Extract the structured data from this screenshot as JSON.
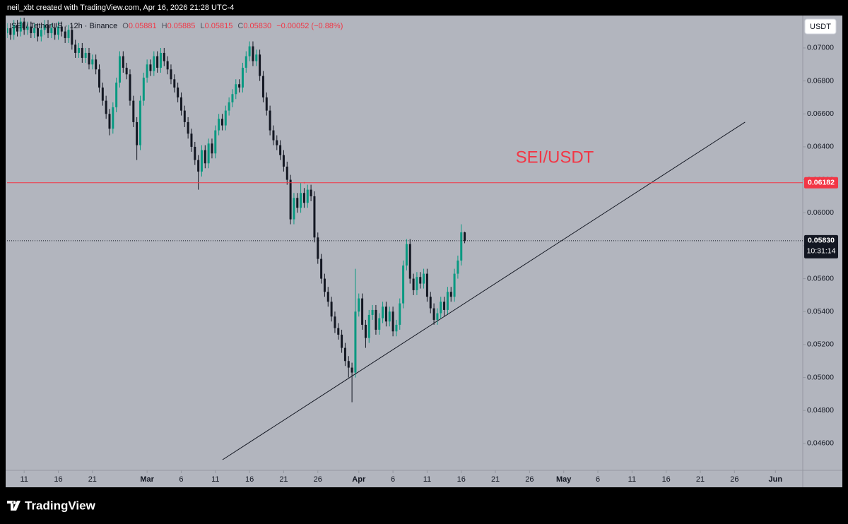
{
  "header": {
    "caption": "neil_xbt created with TradingView.com, Apr 16, 2026 21:28 UTC-4"
  },
  "footer": {
    "brand": "TradingView"
  },
  "chart_data": {
    "type": "candlestick",
    "legend": {
      "symbol": "SEI / TetherUS · 12h · Binance",
      "items": [
        {
          "key": "O",
          "value": "0.05881"
        },
        {
          "key": "H",
          "value": "0.05885"
        },
        {
          "key": "L",
          "value": "0.05815"
        },
        {
          "key": "C",
          "value": "0.05830"
        }
      ],
      "change": "−0.00052 (−0.88%)"
    },
    "currency": "USDT",
    "annotation": "SEI/USDT",
    "up_color": "#089981",
    "down_color": "#131722",
    "background": "#b2b5be",
    "grid": false,
    "open": [
      0.0709,
      0.0712,
      0.0708,
      0.0714,
      0.071,
      0.0716,
      0.0711,
      0.0713,
      0.0709,
      0.0712,
      0.0707,
      0.0711,
      0.0714,
      0.0709,
      0.0712,
      0.0708,
      0.0713,
      0.071,
      0.0706,
      0.0711,
      0.0702,
      0.0697,
      0.07,
      0.0694,
      0.0697,
      0.069,
      0.0693,
      0.0687,
      0.0676,
      0.0668,
      0.066,
      0.0651,
      0.0664,
      0.0679,
      0.0695,
      0.0688,
      0.0684,
      0.0668,
      0.0655,
      0.0641,
      0.0668,
      0.0682,
      0.069,
      0.0686,
      0.0695,
      0.0688,
      0.0697,
      0.0692,
      0.0687,
      0.0681,
      0.0676,
      0.067,
      0.0662,
      0.0655,
      0.0648,
      0.064,
      0.0632,
      0.0625,
      0.0638,
      0.063,
      0.0642,
      0.0636,
      0.065,
      0.0657,
      0.0653,
      0.0662,
      0.0667,
      0.0672,
      0.0678,
      0.0676,
      0.0688,
      0.0695,
      0.0701,
      0.0692,
      0.0696,
      0.0683,
      0.067,
      0.0662,
      0.065,
      0.0644,
      0.0641,
      0.0635,
      0.0628,
      0.062,
      0.0596,
      0.0609,
      0.0603,
      0.0612,
      0.0606,
      0.0614,
      0.061,
      0.0585,
      0.0572,
      0.056,
      0.0552,
      0.0546,
      0.0537,
      0.053,
      0.0526,
      0.0518,
      0.051,
      0.0506,
      0.0503,
      0.054,
      0.0548,
      0.0532,
      0.0524,
      0.0538,
      0.0541,
      0.0529,
      0.0536,
      0.0543,
      0.0534,
      0.054,
      0.0528,
      0.0532,
      0.0545,
      0.0568,
      0.0581,
      0.056,
      0.0553,
      0.0561,
      0.0557,
      0.0563,
      0.0549,
      0.0542,
      0.0535,
      0.0539,
      0.0546,
      0.0541,
      0.0552,
      0.0549,
      0.0563,
      0.0571,
      0.05881
    ],
    "high": [
      0.0715,
      0.0715,
      0.0717,
      0.0717,
      0.0719,
      0.0719,
      0.0716,
      0.0716,
      0.0715,
      0.0715,
      0.0714,
      0.0717,
      0.0717,
      0.0715,
      0.0715,
      0.0716,
      0.0716,
      0.0713,
      0.0714,
      0.0714,
      0.0705,
      0.0703,
      0.0703,
      0.07,
      0.07,
      0.0696,
      0.0696,
      0.069,
      0.0679,
      0.0671,
      0.0663,
      0.0667,
      0.0682,
      0.0698,
      0.0698,
      0.0691,
      0.0687,
      0.0671,
      0.0658,
      0.0671,
      0.0685,
      0.0693,
      0.0693,
      0.0698,
      0.0698,
      0.07,
      0.07,
      0.0695,
      0.069,
      0.0684,
      0.0679,
      0.0673,
      0.0665,
      0.0658,
      0.0651,
      0.0643,
      0.0635,
      0.0641,
      0.0641,
      0.0645,
      0.0645,
      0.0653,
      0.066,
      0.066,
      0.0665,
      0.067,
      0.0675,
      0.0681,
      0.0681,
      0.0691,
      0.0698,
      0.0704,
      0.0704,
      0.0699,
      0.0699,
      0.0686,
      0.0673,
      0.0665,
      0.0653,
      0.0647,
      0.0644,
      0.0638,
      0.0631,
      0.0623,
      0.0612,
      0.0612,
      0.0618,
      0.0615,
      0.0617,
      0.0617,
      0.0613,
      0.0588,
      0.0575,
      0.0563,
      0.0555,
      0.0549,
      0.054,
      0.0533,
      0.0529,
      0.0521,
      0.0513,
      0.0509,
      0.0566,
      0.0551,
      0.0551,
      0.0535,
      0.0541,
      0.0544,
      0.0544,
      0.0539,
      0.0546,
      0.0546,
      0.0543,
      0.0543,
      0.0535,
      0.0548,
      0.0571,
      0.0584,
      0.0584,
      0.0563,
      0.0564,
      0.0564,
      0.0566,
      0.0566,
      0.0552,
      0.0545,
      0.0542,
      0.0549,
      0.0549,
      0.0555,
      0.0555,
      0.0566,
      0.0574,
      0.0593,
      0.05885
    ],
    "low": [
      0.0706,
      0.0705,
      0.0705,
      0.0707,
      0.0707,
      0.0708,
      0.0708,
      0.0706,
      0.0706,
      0.0704,
      0.0704,
      0.0708,
      0.0706,
      0.0706,
      0.0705,
      0.0705,
      0.0707,
      0.0703,
      0.0703,
      0.0699,
      0.0694,
      0.0694,
      0.0691,
      0.0691,
      0.0687,
      0.0687,
      0.0684,
      0.0673,
      0.0665,
      0.0657,
      0.0647,
      0.0648,
      0.0661,
      0.0676,
      0.0685,
      0.0681,
      0.0665,
      0.0652,
      0.0632,
      0.0638,
      0.0665,
      0.0679,
      0.0683,
      0.0683,
      0.0685,
      0.0685,
      0.0689,
      0.0684,
      0.0678,
      0.0673,
      0.0667,
      0.0659,
      0.0652,
      0.0645,
      0.0637,
      0.0629,
      0.0614,
      0.0622,
      0.0627,
      0.0627,
      0.0633,
      0.0633,
      0.0647,
      0.065,
      0.065,
      0.0659,
      0.0664,
      0.0669,
      0.0673,
      0.0673,
      0.0685,
      0.0692,
      0.0689,
      0.0689,
      0.068,
      0.0667,
      0.0659,
      0.0647,
      0.0641,
      0.0638,
      0.0632,
      0.0625,
      0.0617,
      0.0593,
      0.0593,
      0.06,
      0.06,
      0.0603,
      0.0603,
      0.0607,
      0.0582,
      0.0569,
      0.0557,
      0.0549,
      0.0543,
      0.0534,
      0.0527,
      0.0523,
      0.0515,
      0.0507,
      0.05,
      0.0485,
      0.05,
      0.0537,
      0.0529,
      0.0518,
      0.0521,
      0.0535,
      0.0526,
      0.0526,
      0.0533,
      0.0531,
      0.0531,
      0.0525,
      0.0525,
      0.0529,
      0.0542,
      0.0565,
      0.0557,
      0.055,
      0.055,
      0.0554,
      0.0554,
      0.0546,
      0.0539,
      0.0532,
      0.0532,
      0.0536,
      0.0537,
      0.0538,
      0.0546,
      0.0546,
      0.056,
      0.0568,
      0.05815
    ],
    "close": [
      0.0712,
      0.0708,
      0.0714,
      0.071,
      0.0716,
      0.0711,
      0.0713,
      0.0709,
      0.0712,
      0.0707,
      0.0711,
      0.0714,
      0.0709,
      0.0712,
      0.0708,
      0.0713,
      0.071,
      0.0706,
      0.0711,
      0.0702,
      0.0697,
      0.07,
      0.0694,
      0.0697,
      0.069,
      0.0693,
      0.0687,
      0.0676,
      0.0668,
      0.066,
      0.0651,
      0.0664,
      0.0679,
      0.0695,
      0.0688,
      0.0684,
      0.0668,
      0.0655,
      0.0641,
      0.0668,
      0.0682,
      0.069,
      0.0686,
      0.0695,
      0.0688,
      0.0697,
      0.0692,
      0.0687,
      0.0681,
      0.0676,
      0.067,
      0.0662,
      0.0655,
      0.0648,
      0.064,
      0.0632,
      0.0625,
      0.0638,
      0.063,
      0.0642,
      0.0636,
      0.065,
      0.0657,
      0.0653,
      0.0662,
      0.0667,
      0.0672,
      0.0678,
      0.0676,
      0.0688,
      0.0695,
      0.0701,
      0.0692,
      0.0696,
      0.0683,
      0.067,
      0.0662,
      0.065,
      0.0644,
      0.0641,
      0.0635,
      0.0628,
      0.062,
      0.0596,
      0.0609,
      0.0603,
      0.0612,
      0.0606,
      0.0614,
      0.061,
      0.0585,
      0.0572,
      0.056,
      0.0552,
      0.0546,
      0.0537,
      0.053,
      0.0526,
      0.0518,
      0.051,
      0.0506,
      0.0503,
      0.054,
      0.0548,
      0.0532,
      0.0524,
      0.0538,
      0.0541,
      0.0529,
      0.0536,
      0.0543,
      0.0534,
      0.054,
      0.0528,
      0.0532,
      0.0545,
      0.0568,
      0.0581,
      0.056,
      0.0553,
      0.0561,
      0.0557,
      0.0563,
      0.0549,
      0.0542,
      0.0535,
      0.0539,
      0.0546,
      0.0541,
      0.0552,
      0.0549,
      0.0563,
      0.0571,
      0.05881,
      0.0583
    ],
    "xlim": [
      0,
      233
    ],
    "xticks": [
      {
        "value": 5,
        "label": "11"
      },
      {
        "value": 15,
        "label": "16"
      },
      {
        "value": 25,
        "label": "21"
      },
      {
        "value": 41,
        "label": "Mar"
      },
      {
        "value": 51,
        "label": "6"
      },
      {
        "value": 61,
        "label": "11"
      },
      {
        "value": 71,
        "label": "16"
      },
      {
        "value": 81,
        "label": "21"
      },
      {
        "value": 91,
        "label": "26"
      },
      {
        "value": 103,
        "label": "Apr"
      },
      {
        "value": 113,
        "label": "6"
      },
      {
        "value": 123,
        "label": "11"
      },
      {
        "value": 133,
        "label": "16"
      },
      {
        "value": 143,
        "label": "21"
      },
      {
        "value": 153,
        "label": "26"
      },
      {
        "value": 163,
        "label": "May"
      },
      {
        "value": 173,
        "label": "6"
      },
      {
        "value": 183,
        "label": "11"
      },
      {
        "value": 193,
        "label": "16"
      },
      {
        "value": 203,
        "label": "21"
      },
      {
        "value": 213,
        "label": "26"
      },
      {
        "value": 225,
        "label": "Jun"
      }
    ],
    "ylim": [
      0.04441,
      0.07184
    ],
    "yticks": [
      {
        "value": 0.07,
        "label": "0.07000"
      },
      {
        "value": 0.068,
        "label": "0.06800"
      },
      {
        "value": 0.066,
        "label": "0.06600"
      },
      {
        "value": 0.064,
        "label": "0.06400"
      },
      {
        "value": 0.062,
        "label": "0.06200"
      },
      {
        "value": 0.06,
        "label": "0.06000"
      },
      {
        "value": 0.058,
        "label": "0.05800"
      },
      {
        "value": 0.056,
        "label": "0.05600"
      },
      {
        "value": 0.054,
        "label": "0.05400"
      },
      {
        "value": 0.052,
        "label": "0.05200"
      },
      {
        "value": 0.05,
        "label": "0.05000"
      },
      {
        "value": 0.048,
        "label": "0.04800"
      },
      {
        "value": 0.046,
        "label": "0.04600"
      }
    ],
    "horizontal_line": {
      "value": 0.06182,
      "label": "0.06182",
      "color": "#f23645"
    },
    "last_price": {
      "label": "0.05830",
      "countdown": "10:31:14"
    },
    "trend_line": {
      "x": [
        63.1,
        216.1
      ],
      "y": [
        0.04501,
        0.0655
      ],
      "color": "#131722"
    }
  }
}
